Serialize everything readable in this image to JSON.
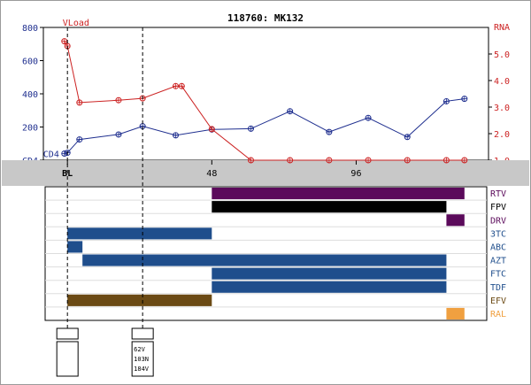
{
  "title": "118760: MK132",
  "colors": {
    "cd4": "#1f2f8f",
    "rna": "#cc2222",
    "band": "#c8c8c8",
    "grid": "#dddddd"
  },
  "chart_data": {
    "type": "line",
    "x_unit": "weeks",
    "xlim": [
      -8,
      140
    ],
    "x_ticks": [
      {
        "x": 0,
        "label": "BL"
      },
      {
        "x": 48,
        "label": "48"
      },
      {
        "x": 96,
        "label": "96"
      }
    ],
    "left_axis": {
      "label": "CD4",
      "range": [
        0,
        800
      ],
      "ticks": [
        0,
        200,
        400,
        600,
        800
      ],
      "tick_labels": [
        "CD4",
        "200",
        "400",
        "600",
        "800"
      ]
    },
    "right_axis": {
      "label": "RNA",
      "range": [
        1.0,
        6.0
      ],
      "ticks": [
        1.0,
        2.0,
        3.0,
        4.0,
        5.0
      ],
      "tick_labels": [
        "1.0",
        "2.0",
        "3.0",
        "4.0",
        "5.0"
      ]
    },
    "series": [
      {
        "name": "CD4",
        "label": "CD4",
        "axis": "left",
        "color": "#1f2f8f",
        "x": [
          -1,
          0,
          4,
          17,
          25,
          36,
          48,
          61,
          74,
          87,
          100,
          113,
          126,
          132
        ],
        "y": [
          40,
          45,
          125,
          155,
          205,
          150,
          185,
          190,
          295,
          170,
          255,
          140,
          355,
          370
        ]
      },
      {
        "name": "VLoad",
        "label": "VLoad",
        "axis": "right",
        "color": "#cc2222",
        "x": [
          -1,
          0,
          4,
          17,
          25,
          36,
          38,
          48,
          61,
          74,
          87,
          100,
          113,
          126,
          132
        ],
        "y": [
          5.48,
          5.3,
          3.17,
          3.26,
          3.33,
          3.79,
          3.79,
          2.17,
          1.0,
          1.0,
          1.0,
          1.0,
          1.0,
          1.0,
          1.0
        ]
      }
    ],
    "markers_x": [
      0,
      25
    ],
    "drugs": [
      {
        "name": "RTV",
        "color": "#5b0a5b",
        "periods": [
          [
            48,
            132
          ]
        ]
      },
      {
        "name": "FPV",
        "color": "#000000",
        "periods": [
          [
            48,
            126
          ]
        ]
      },
      {
        "name": "DRV",
        "color": "#5b0a5b",
        "periods": [
          [
            126,
            132
          ]
        ]
      },
      {
        "name": "3TC",
        "color": "#1f4e8c",
        "periods": [
          [
            0,
            48
          ]
        ]
      },
      {
        "name": "ABC",
        "color": "#1f4e8c",
        "periods": [
          [
            0,
            5
          ]
        ]
      },
      {
        "name": "AZT",
        "color": "#1f4e8c",
        "periods": [
          [
            5,
            126
          ]
        ]
      },
      {
        "name": "FTC",
        "color": "#1f4e8c",
        "periods": [
          [
            48,
            126
          ]
        ]
      },
      {
        "name": "TDF",
        "color": "#1f4e8c",
        "periods": [
          [
            48,
            126
          ]
        ]
      },
      {
        "name": "EFV",
        "color": "#6b4a14",
        "periods": [
          [
            0,
            48
          ]
        ]
      },
      {
        "name": "RAL",
        "color": "#f0a040",
        "periods": [
          [
            126,
            132
          ]
        ]
      }
    ],
    "genotypes": [
      {
        "x": 0,
        "mutations": []
      },
      {
        "x": 25,
        "mutations": [
          "62V",
          "103N",
          "184V"
        ]
      }
    ]
  }
}
